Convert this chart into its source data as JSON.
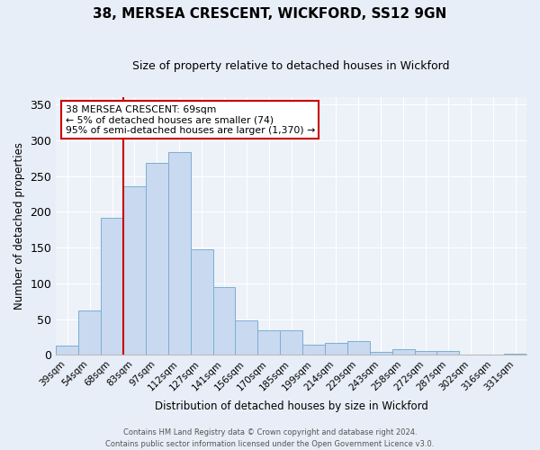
{
  "title": "38, MERSEA CRESCENT, WICKFORD, SS12 9GN",
  "subtitle": "Size of property relative to detached houses in Wickford",
  "xlabel": "Distribution of detached houses by size in Wickford",
  "ylabel": "Number of detached properties",
  "bar_labels": [
    "39sqm",
    "54sqm",
    "68sqm",
    "83sqm",
    "97sqm",
    "112sqm",
    "127sqm",
    "141sqm",
    "156sqm",
    "170sqm",
    "185sqm",
    "199sqm",
    "214sqm",
    "229sqm",
    "243sqm",
    "258sqm",
    "272sqm",
    "287sqm",
    "302sqm",
    "316sqm",
    "331sqm"
  ],
  "bar_values": [
    13,
    62,
    192,
    236,
    268,
    284,
    148,
    95,
    48,
    34,
    34,
    15,
    17,
    19,
    4,
    8,
    6,
    5,
    1,
    0,
    2
  ],
  "bar_color": "#c9d9f0",
  "bar_edgecolor": "#7bafd4",
  "vline_x_index": 2,
  "vline_color": "#cc0000",
  "annotation_title": "38 MERSEA CRESCENT: 69sqm",
  "annotation_line1": "← 5% of detached houses are smaller (74)",
  "annotation_line2": "95% of semi-detached houses are larger (1,370) →",
  "annotation_box_color": "#ffffff",
  "annotation_box_edgecolor": "#cc0000",
  "ylim": [
    0,
    360
  ],
  "yticks": [
    0,
    50,
    100,
    150,
    200,
    250,
    300,
    350
  ],
  "footer_line1": "Contains HM Land Registry data © Crown copyright and database right 2024.",
  "footer_line2": "Contains public sector information licensed under the Open Government Licence v3.0.",
  "background_color": "#e8eef7",
  "plot_background_color": "#edf1f8"
}
